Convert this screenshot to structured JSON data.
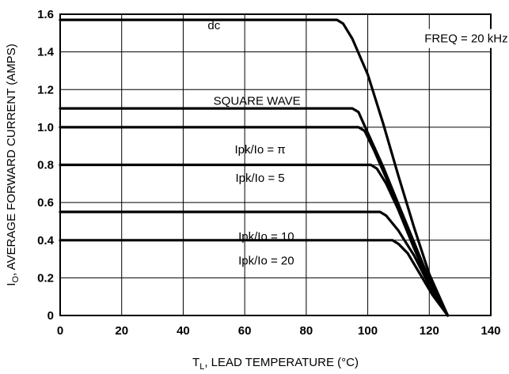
{
  "chart_data": {
    "type": "line",
    "xlabel_main": "T",
    "xlabel_sub": "L",
    "xlabel_rest": ", LEAD TEMPERATURE (°C)",
    "ylabel_main": "I",
    "ylabel_sub": "O",
    "ylabel_rest": ", AVERAGE FORWARD CURRENT (AMPS)",
    "xlim": [
      0,
      140
    ],
    "ylim": [
      0,
      1.6
    ],
    "x_ticks": [
      "0",
      "20",
      "40",
      "60",
      "80",
      "100",
      "120",
      "140"
    ],
    "y_ticks": [
      "0",
      "0.2",
      "0.4",
      "0.6",
      "0.8",
      "1.0",
      "1.2",
      "1.4",
      "1.6"
    ],
    "x_tick_values": [
      0,
      20,
      40,
      60,
      80,
      100,
      120,
      140
    ],
    "y_tick_values": [
      0,
      0.2,
      0.4,
      0.6,
      0.8,
      1.0,
      1.2,
      1.4,
      1.6
    ],
    "grid": true,
    "annotation": "FREQ = 20 kHz",
    "series": [
      {
        "name": "dc",
        "label_at": [
          50,
          1.52
        ],
        "points": [
          [
            0,
            1.57
          ],
          [
            90,
            1.57
          ],
          [
            92,
            1.55
          ],
          [
            95,
            1.47
          ],
          [
            100,
            1.28
          ],
          [
            105,
            1.02
          ],
          [
            110,
            0.74
          ],
          [
            115,
            0.47
          ],
          [
            120,
            0.22
          ],
          [
            126,
            0
          ]
        ]
      },
      {
        "name": "SQUARE WAVE",
        "label_at": [
          64,
          1.12
        ],
        "points": [
          [
            0,
            1.1
          ],
          [
            95,
            1.1
          ],
          [
            97,
            1.08
          ],
          [
            100,
            0.97
          ],
          [
            105,
            0.79
          ],
          [
            110,
            0.59
          ],
          [
            115,
            0.39
          ],
          [
            120,
            0.19
          ],
          [
            126,
            0
          ]
        ]
      },
      {
        "name": "Ipk/Io = π",
        "label_at": [
          65,
          0.86
        ],
        "points": [
          [
            0,
            1.0
          ],
          [
            97,
            1.0
          ],
          [
            99,
            0.98
          ],
          [
            102,
            0.88
          ],
          [
            106,
            0.73
          ],
          [
            110,
            0.56
          ],
          [
            115,
            0.36
          ],
          [
            120,
            0.17
          ],
          [
            126,
            0
          ]
        ]
      },
      {
        "name": "Ipk/Io = 5",
        "label_at": [
          65,
          0.71
        ],
        "points": [
          [
            0,
            0.8
          ],
          [
            101,
            0.8
          ],
          [
            103,
            0.78
          ],
          [
            106,
            0.7
          ],
          [
            110,
            0.56
          ],
          [
            115,
            0.36
          ],
          [
            120,
            0.17
          ],
          [
            126,
            0
          ]
        ]
      },
      {
        "name": "Ipk/Io = 10",
        "label_at": [
          67,
          0.4
        ],
        "points": [
          [
            0,
            0.55
          ],
          [
            104,
            0.55
          ],
          [
            106,
            0.53
          ],
          [
            110,
            0.45
          ],
          [
            115,
            0.32
          ],
          [
            120,
            0.16
          ],
          [
            126,
            0
          ]
        ]
      },
      {
        "name": "Ipk/Io = 20",
        "label_at": [
          67,
          0.27
        ],
        "points": [
          [
            0,
            0.4
          ],
          [
            108,
            0.4
          ],
          [
            110,
            0.38
          ],
          [
            113,
            0.33
          ],
          [
            117,
            0.22
          ],
          [
            121,
            0.11
          ],
          [
            126,
            0
          ]
        ]
      }
    ]
  }
}
